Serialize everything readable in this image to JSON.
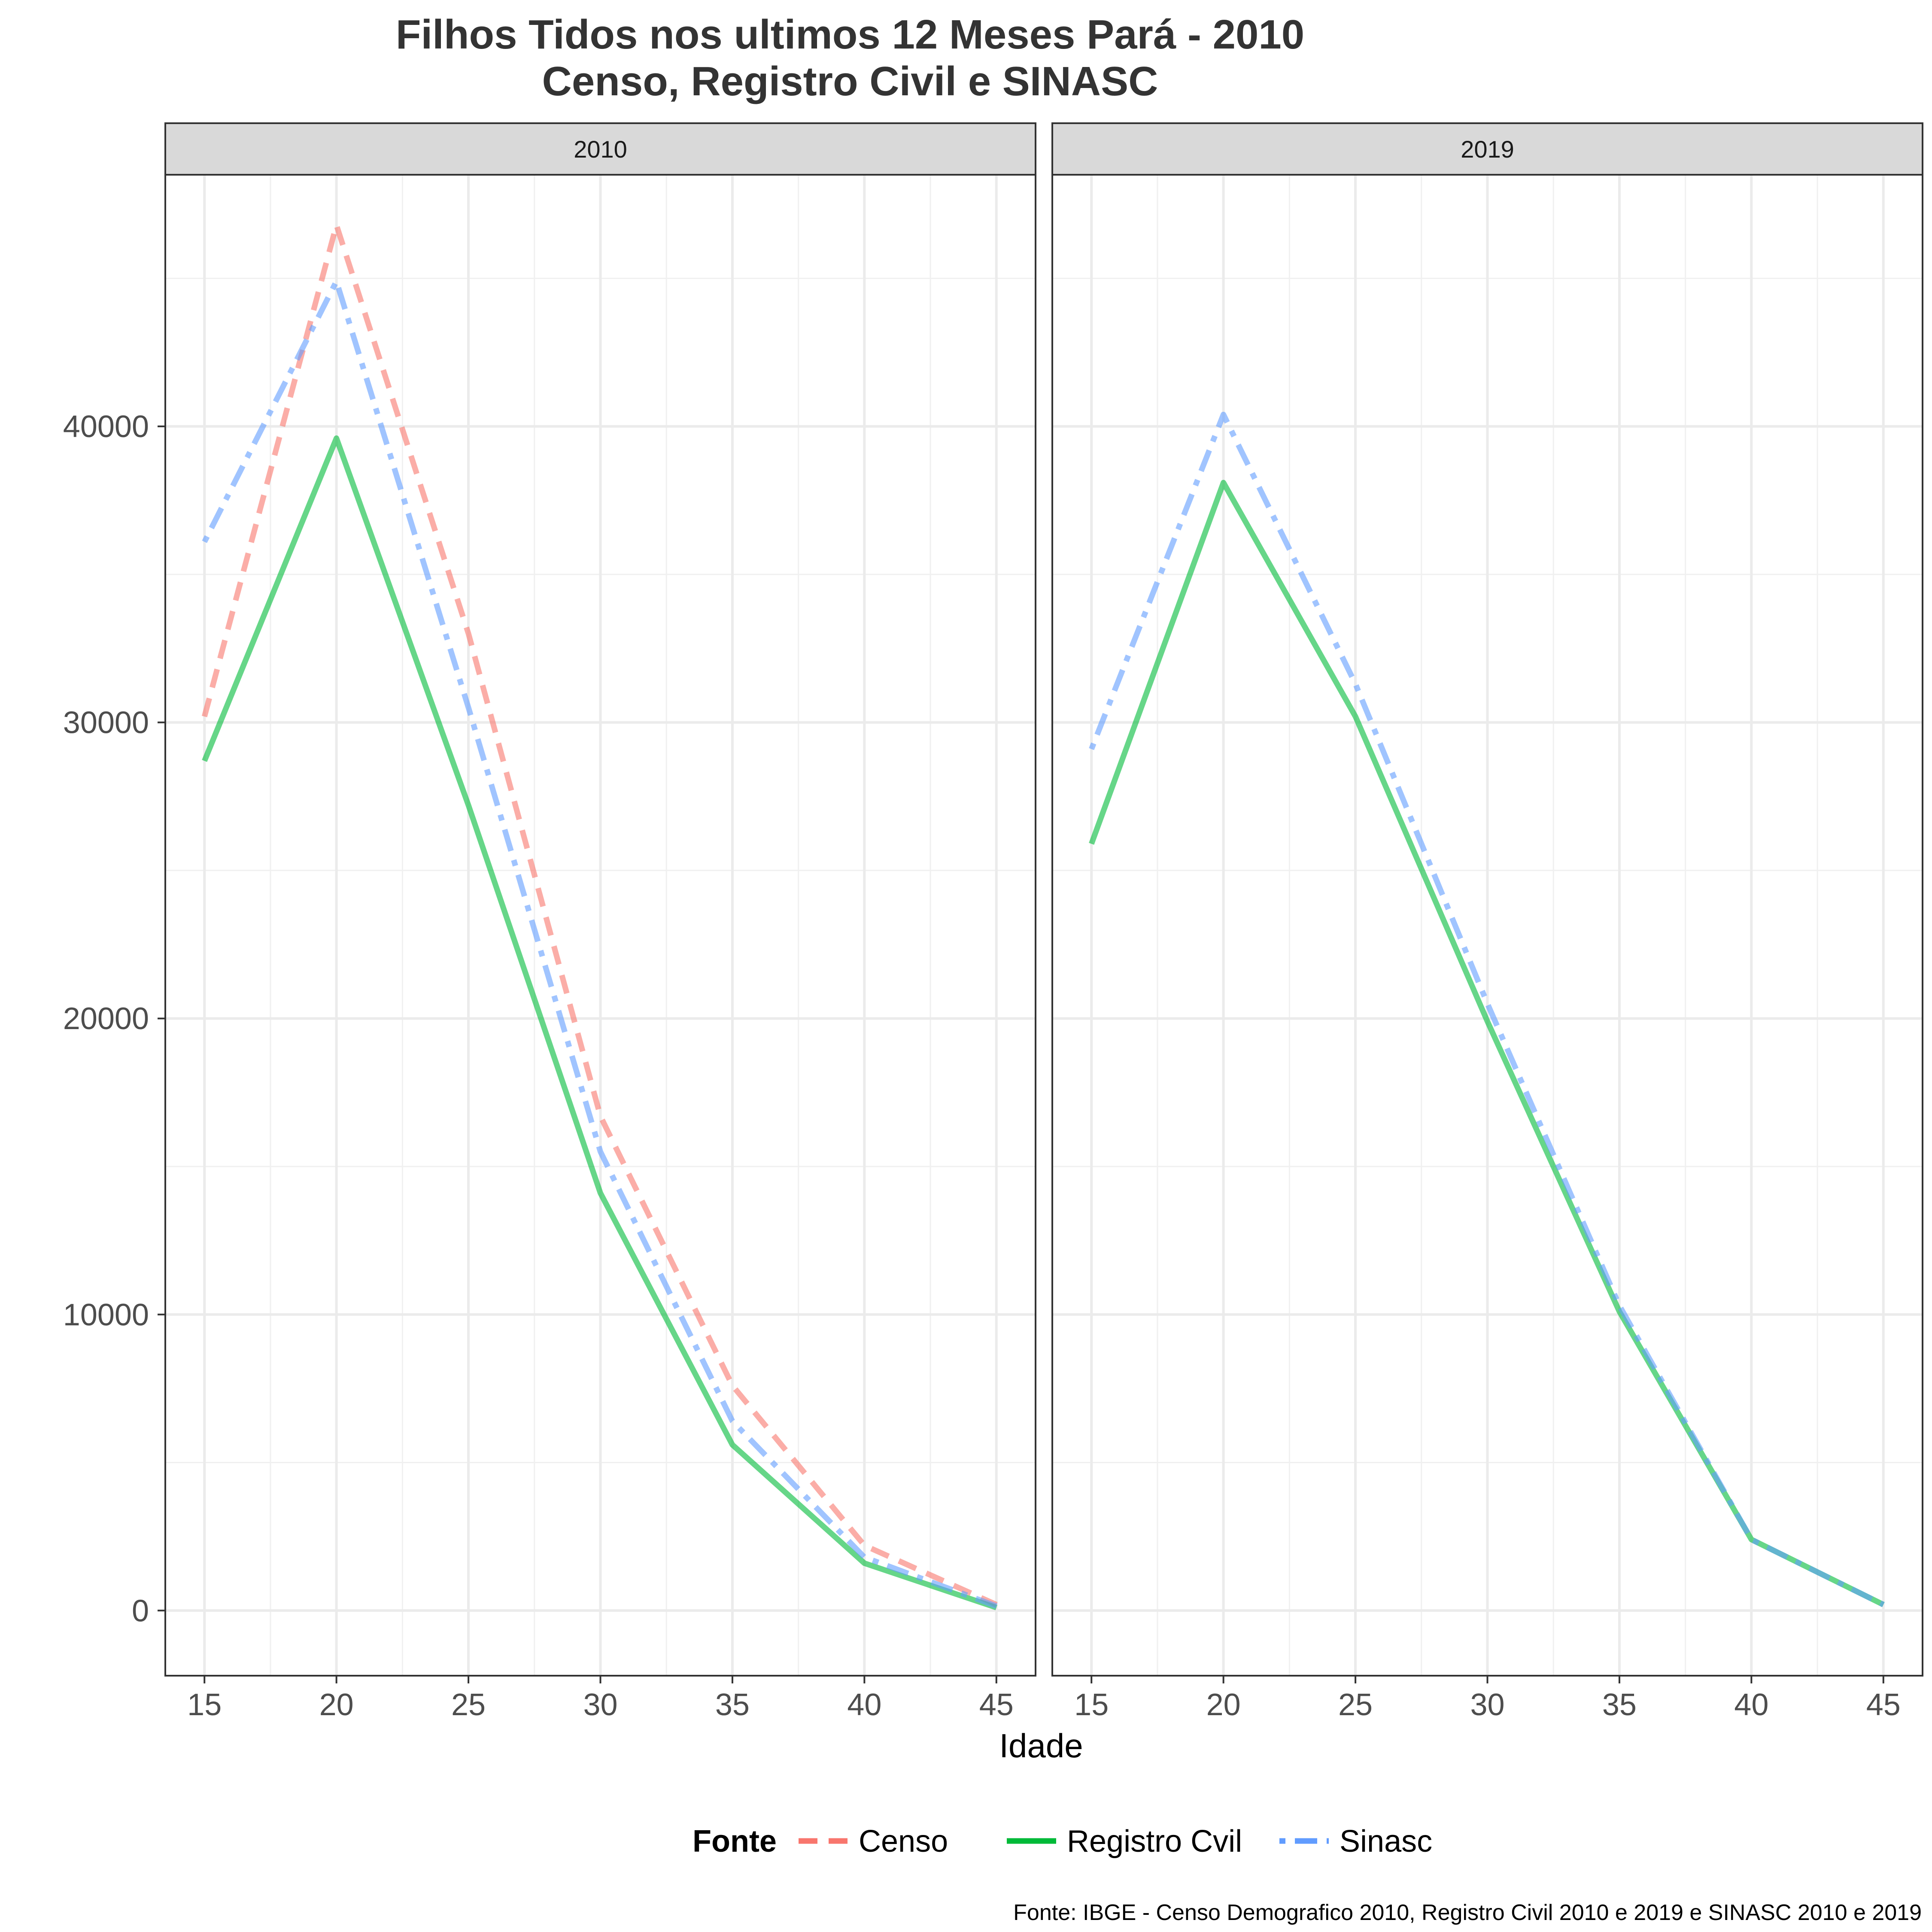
{
  "chart_data": {
    "type": "line",
    "title": "Filhos Tidos nos ultimos 12 Meses Pará - 2010",
    "subtitle": "Censo, Registro Civil e SINASC",
    "xlabel": "Idade",
    "ylabel": "",
    "caption": "Fonte: IBGE - Censo Demografico 2010, Registro Civil 2010 e 2019 e SINASC 2010 e 2019",
    "legend_title": "Fonte",
    "legend_position": "bottom",
    "grid": true,
    "xlim": [
      15,
      45
    ],
    "ylim": [
      -2200,
      48500
    ],
    "x_ticks": [
      15,
      20,
      25,
      30,
      35,
      40,
      45
    ],
    "y_ticks": [
      0,
      10000,
      20000,
      30000,
      40000
    ],
    "y_tick_labels": [
      "0",
      "10000",
      "20000",
      "30000",
      "40000"
    ],
    "x_tick_labels": [
      "15",
      "20",
      "25",
      "30",
      "35",
      "40",
      "45"
    ],
    "legend": [
      {
        "name": "Censo",
        "color": "#F8766D",
        "dash": "dashed"
      },
      {
        "name": "Registro Cvil",
        "color": "#00BA38",
        "dash": "solid"
      },
      {
        "name": "Sinasc",
        "color": "#619CFF",
        "dash": "dotdash"
      }
    ],
    "facets": [
      {
        "label": "2010",
        "x": [
          15,
          20,
          25,
          30,
          35,
          40,
          45
        ],
        "series": [
          {
            "name": "Censo",
            "color": "#F8766D",
            "dash": "dashed",
            "values": [
              30200,
              46800,
              33000,
              16700,
              7600,
              2200,
              200
            ]
          },
          {
            "name": "Registro Cvil",
            "color": "#00BA38",
            "dash": "solid",
            "values": [
              28700,
              39600,
              27200,
              14100,
              5600,
              1600,
              100
            ]
          },
          {
            "name": "Sinasc",
            "color": "#619CFF",
            "dash": "dotdash",
            "values": [
              36100,
              44900,
              30500,
              15500,
              6400,
              1800,
              150
            ]
          }
        ]
      },
      {
        "label": "2019",
        "x": [
          15,
          20,
          25,
          30,
          35,
          40,
          45
        ],
        "series": [
          {
            "name": "Registro Cvil",
            "color": "#00BA38",
            "dash": "solid",
            "values": [
              25900,
              38100,
              30200,
              19900,
              10100,
              2400,
              200
            ]
          },
          {
            "name": "Sinasc",
            "color": "#619CFF",
            "dash": "dotdash",
            "values": [
              29100,
              40400,
              31300,
              20500,
              10300,
              2400,
              200
            ]
          }
        ]
      }
    ]
  }
}
